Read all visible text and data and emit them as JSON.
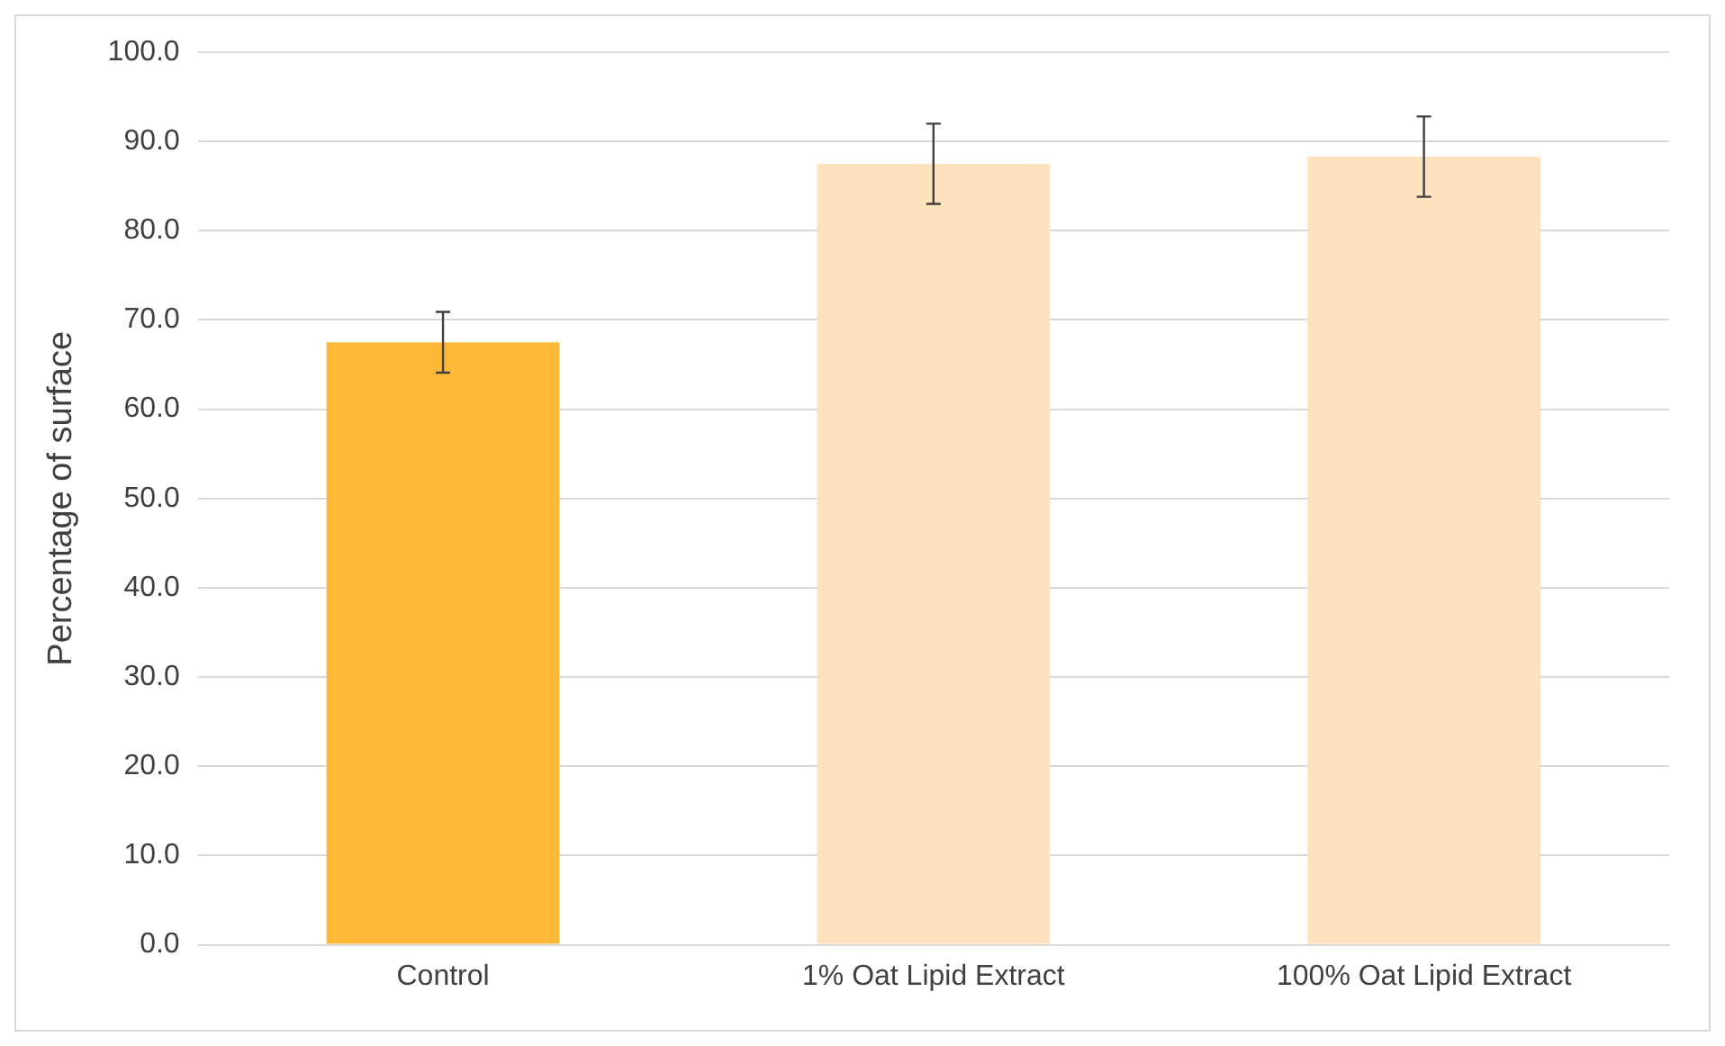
{
  "chart_data": {
    "type": "bar",
    "ylabel": "Percentage of surface",
    "categories": [
      "Control",
      "1% Oat Lipid Extract",
      "100% Oat Lipid Extract"
    ],
    "values": [
      67.5,
      87.5,
      88.3
    ],
    "colors": [
      "#ffb838",
      "#fde3bd",
      "#fde3bd"
    ],
    "errors": [
      3.4,
      4.5,
      4.5
    ],
    "ylim": [
      0,
      100
    ],
    "yticks": [
      {
        "value": 0,
        "label": "0.0"
      },
      {
        "value": 10,
        "label": "10.0"
      },
      {
        "value": 20,
        "label": "20.0"
      },
      {
        "value": 30,
        "label": "30.0"
      },
      {
        "value": 40,
        "label": "40.0"
      },
      {
        "value": 50,
        "label": "50.0"
      },
      {
        "value": 60,
        "label": "60.0"
      },
      {
        "value": 70,
        "label": "70.0"
      },
      {
        "value": 80,
        "label": "80.0"
      },
      {
        "value": 90,
        "label": "90.0"
      },
      {
        "value": 100,
        "label": "100.0"
      }
    ],
    "grid": "y",
    "legend": false
  }
}
